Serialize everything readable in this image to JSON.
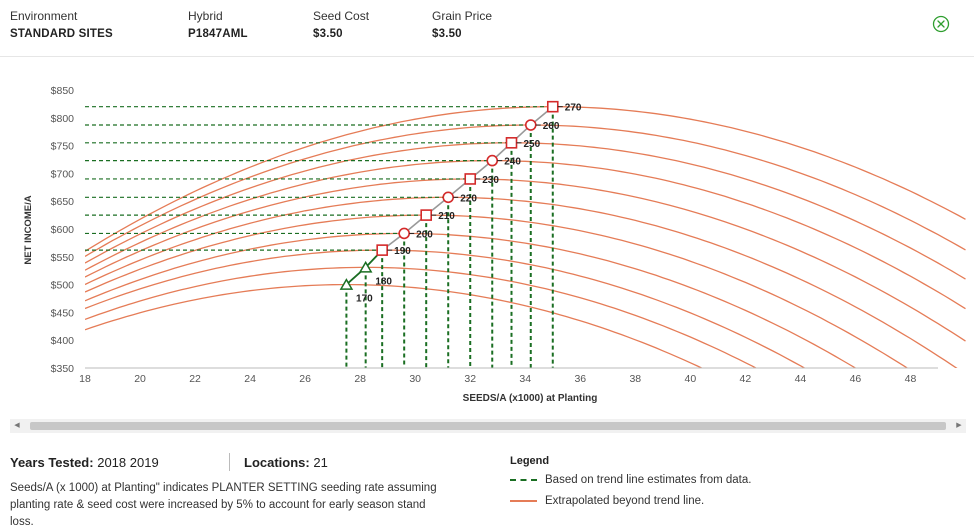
{
  "header": {
    "environment": {
      "label": "Environment",
      "value": "STANDARD SITES"
    },
    "hybrid": {
      "label": "Hybrid",
      "value": "P1847AML"
    },
    "seed_cost": {
      "label": "Seed Cost",
      "value": "$3.50"
    },
    "grain_price": {
      "label": "Grain Price",
      "value": "$3.50"
    },
    "close_icon": "close-circle-icon"
  },
  "chart_data": {
    "type": "line",
    "title": "",
    "xlabel": "SEEDS/A (x1000) at Planting",
    "ylabel": "NET INCOME/A",
    "xlim": [
      18,
      49
    ],
    "ylim": [
      350,
      850
    ],
    "x_ticks": [
      18,
      20,
      22,
      24,
      26,
      28,
      30,
      32,
      34,
      36,
      38,
      40,
      42,
      44,
      46,
      48
    ],
    "y_ticks": [
      350,
      400,
      450,
      500,
      550,
      600,
      650,
      700,
      750,
      800,
      850
    ],
    "y_tick_labels": [
      "$350",
      "$400",
      "$450",
      "$500",
      "$550",
      "$600",
      "$650",
      "$700",
      "$750",
      "$800",
      "$850"
    ],
    "grid": false,
    "colors": {
      "trend": "#1a6e22",
      "extrapolated": "#e57c57",
      "optimum": "#d42a2a",
      "connector": "#999999"
    },
    "series": [
      {
        "label": "170",
        "marker": "triangle",
        "optimum": {
          "x": 27.5,
          "y": 500
        }
      },
      {
        "label": "180",
        "marker": "triangle",
        "optimum": {
          "x": 28.2,
          "y": 531
        }
      },
      {
        "label": "190",
        "marker": "square",
        "optimum": {
          "x": 28.8,
          "y": 562
        }
      },
      {
        "label": "200",
        "marker": "circle",
        "optimum": {
          "x": 29.6,
          "y": 592
        }
      },
      {
        "label": "210",
        "marker": "square",
        "optimum": {
          "x": 30.4,
          "y": 625
        }
      },
      {
        "label": "220",
        "marker": "circle",
        "optimum": {
          "x": 31.2,
          "y": 657
        }
      },
      {
        "label": "230",
        "marker": "square",
        "optimum": {
          "x": 32.0,
          "y": 690
        }
      },
      {
        "label": "240",
        "marker": "circle",
        "optimum": {
          "x": 32.8,
          "y": 723
        }
      },
      {
        "label": "250",
        "marker": "square",
        "optimum": {
          "x": 33.5,
          "y": 755
        }
      },
      {
        "label": "260",
        "marker": "circle",
        "optimum": {
          "x": 34.2,
          "y": 787
        }
      },
      {
        "label": "270",
        "marker": "square",
        "optimum": {
          "x": 35.0,
          "y": 820
        }
      }
    ]
  },
  "summary": {
    "years_label": "Years Tested:",
    "years_value": "2018 2019",
    "locations_label": "Locations:",
    "locations_value": "21",
    "note": "Seeds/A (x 1000) at Planting\" indicates PLANTER SETTING seeding rate assuming planting rate & seed cost were increased by 5% to account for early season stand loss."
  },
  "legend": {
    "title": "Legend",
    "items": [
      {
        "label": "Based on trend line estimates from data.",
        "style": "dashed-green"
      },
      {
        "label": "Extrapolated beyond trend line.",
        "style": "solid-orange"
      }
    ]
  }
}
